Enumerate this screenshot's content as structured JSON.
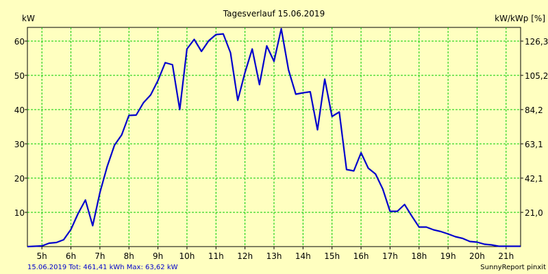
{
  "chart_data": {
    "type": "line",
    "title": "Tagesverlauf 15.06.2019",
    "ylabel_left": "kW",
    "ylabel_right": "kW/kWp [%]",
    "ylim": [
      0,
      64
    ],
    "xlim": [
      4.5,
      21.5
    ],
    "y_ticks": [
      10,
      20,
      30,
      40,
      50,
      60
    ],
    "y_tick_labels": [
      "10",
      "20",
      "30",
      "40",
      "50",
      "60"
    ],
    "y2_ticks": [
      10,
      20,
      30,
      40,
      50,
      60
    ],
    "y2_tick_labels": [
      "21,0",
      "42,1",
      "63,1",
      "84,2",
      "105,2",
      "126,3"
    ],
    "x_ticks": [
      5,
      6,
      7,
      8,
      9,
      10,
      11,
      12,
      13,
      14,
      15,
      16,
      17,
      18,
      19,
      20,
      21
    ],
    "x_tick_labels": [
      "5h",
      "6h",
      "7h",
      "8h",
      "9h",
      "10h",
      "11h",
      "12h",
      "13h",
      "14h",
      "15h",
      "16h",
      "17h",
      "18h",
      "19h",
      "20h",
      "21h"
    ],
    "grid": true,
    "line_color": "#0000cc",
    "grid_color": "#00cc00",
    "series": [
      {
        "name": "kW",
        "x": [
          4.5,
          5.0,
          5.25,
          5.5,
          5.75,
          6.0,
          6.25,
          6.5,
          6.75,
          7.0,
          7.25,
          7.5,
          7.75,
          8.0,
          8.25,
          8.5,
          8.75,
          9.0,
          9.25,
          9.5,
          9.75,
          10.0,
          10.25,
          10.5,
          10.75,
          11.0,
          11.25,
          11.5,
          11.75,
          12.0,
          12.25,
          12.5,
          12.75,
          13.0,
          13.25,
          13.5,
          13.75,
          14.0,
          14.25,
          14.5,
          14.75,
          15.0,
          15.25,
          15.5,
          15.75,
          16.0,
          16.25,
          16.5,
          16.75,
          17.0,
          17.25,
          17.5,
          17.75,
          18.0,
          18.25,
          18.5,
          18.75,
          19.0,
          19.25,
          19.5,
          19.75,
          20.0,
          20.25,
          20.5,
          20.75,
          21.0,
          21.25,
          21.5
        ],
        "values": [
          0,
          0.2,
          1.0,
          1.2,
          2.0,
          5.0,
          9.7,
          13.6,
          6.1,
          15.8,
          23.4,
          29.6,
          32.6,
          38.3,
          38.4,
          42.0,
          44.3,
          48.5,
          53.7,
          53.1,
          40.0,
          57.7,
          60.5,
          57.0,
          60.1,
          61.9,
          62.1,
          56.6,
          42.7,
          50.8,
          57.7,
          47.3,
          58.6,
          54.1,
          63.6,
          51.6,
          44.5,
          44.9,
          45.2,
          34.1,
          48.9,
          38.0,
          39.3,
          22.5,
          22.1,
          27.4,
          22.9,
          21.2,
          16.8,
          10.3,
          10.3,
          12.3,
          8.9,
          5.7,
          5.7,
          4.9,
          4.4,
          3.7,
          2.9,
          2.4,
          1.5,
          1.3,
          0.7,
          0.5,
          0.1,
          0.1,
          0.1,
          0.1
        ]
      }
    ]
  },
  "footer": {
    "summary": "15.06.2019 Tot: 461,41 kWh Max: 63,62 kW",
    "brand": "SunnyReport pinxit"
  }
}
